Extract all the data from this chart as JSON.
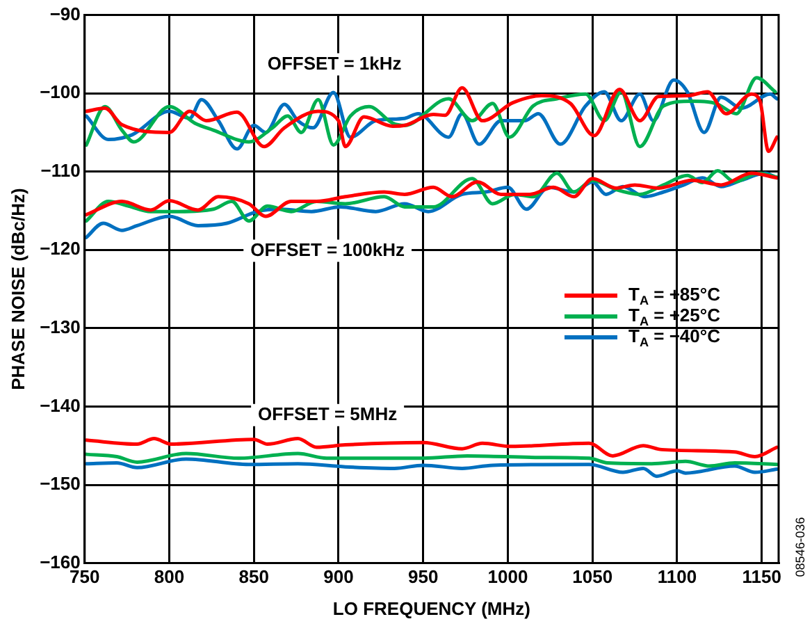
{
  "chart_data": {
    "type": "line",
    "xlabel": "LO FREQUENCY (MHz)",
    "ylabel": "PHASE NOISE (dBc/Hz)",
    "xlim": [
      750,
      1160
    ],
    "xticks": [
      750,
      800,
      850,
      900,
      950,
      1000,
      1050,
      1100,
      1150
    ],
    "ylim": [
      -160,
      -90
    ],
    "yticks": [
      {
        "value": -160,
        "label": "−160"
      },
      {
        "value": -150,
        "label": "−150"
      },
      {
        "value": -140,
        "label": "−140"
      },
      {
        "value": -130,
        "label": "−130"
      },
      {
        "value": -120,
        "label": "−120"
      },
      {
        "value": -110,
        "label": "−110"
      },
      {
        "value": -100,
        "label": "−100"
      },
      {
        "value": -90,
        "label": "−90"
      }
    ],
    "grid": true,
    "legend": "right",
    "marker": "none",
    "line_style": "solid",
    "annotations": [
      "OFFSET = 1kHz",
      "OFFSET = 100kHz",
      "OFFSET = 5MHz",
      "08546-036"
    ],
    "series": [
      {
        "name": "T$_{A}$ = +85°C",
        "color": "#ff0000",
        "x": [
          751,
          762,
          772,
          800,
          812,
          822,
          840,
          856,
          868,
          888,
          900,
          904,
          915,
          932,
          939,
          956,
          963,
          973,
          985,
          1003,
          1020,
          1037,
          1051,
          1066,
          1078,
          1089,
          1106,
          1118,
          1129,
          1144,
          1149,
          1154,
          1159
        ],
        "values": [
          -102.3,
          -101.9,
          -104,
          -105,
          -102.3,
          -103.5,
          -102.4,
          -106.8,
          -104.4,
          -102.3,
          -103.5,
          -106.8,
          -103,
          -104.2,
          -104.1,
          -102.7,
          -102.8,
          -99.3,
          -103.5,
          -101.2,
          -100.3,
          -101.3,
          -105.4,
          -99.5,
          -103.5,
          -100.4,
          -100.3,
          -99.8,
          -102.6,
          -100.1,
          -101,
          -107.4,
          -105.6
        ]
      },
      {
        "name": "T$_{A}$ = +25°C",
        "color": "#00b050",
        "x": [
          751,
          762,
          772,
          779,
          800,
          815,
          826,
          847,
          861,
          870,
          878,
          888,
          897,
          907,
          918,
          932,
          939,
          965,
          979,
          991,
          1001,
          1015,
          1029,
          1046,
          1057,
          1067,
          1078,
          1092,
          1109,
          1123,
          1135,
          1147,
          1158
        ],
        "values": [
          -106.6,
          -101.7,
          -104.7,
          -106.2,
          -101.7,
          -103.8,
          -104.7,
          -106.2,
          -104.4,
          -102.9,
          -105,
          -100.8,
          -106.6,
          -102.9,
          -101.7,
          -103.8,
          -104.1,
          -100.7,
          -103.5,
          -101.3,
          -105.6,
          -101.6,
          -100.7,
          -100.1,
          -103.5,
          -99.8,
          -106.8,
          -101.6,
          -101,
          -101.3,
          -102.6,
          -98,
          -99.8
        ]
      },
      {
        "name": "T$_{A}$ = −40°C",
        "color": "#0070c0",
        "x": [
          751,
          764,
          778,
          800,
          812,
          819,
          829,
          840,
          850,
          857,
          868,
          876,
          885,
          897,
          907,
          922,
          939,
          947,
          965,
          973,
          983,
          996,
          1010,
          1018,
          1031,
          1046,
          1057,
          1067,
          1078,
          1086,
          1098,
          1106,
          1116,
          1126,
          1138,
          1155,
          1159
        ],
        "values": [
          -102.9,
          -105.9,
          -105.3,
          -102.3,
          -103.2,
          -100.8,
          -103.5,
          -107.1,
          -104.1,
          -105,
          -101.4,
          -103.5,
          -104.4,
          -99.9,
          -105.6,
          -103.5,
          -103.2,
          -102.6,
          -105.6,
          -102.6,
          -106.5,
          -103.5,
          -103.5,
          -102.6,
          -106.5,
          -101.6,
          -99.8,
          -103.5,
          -100.1,
          -103.5,
          -98.3,
          -99.8,
          -105,
          -100.5,
          -101.9,
          -100.1,
          -100.7
        ]
      },
      {
        "color": "#ff0000",
        "x": [
          751,
          772,
          789,
          800,
          817,
          829,
          847,
          857,
          872,
          887,
          904,
          927,
          939,
          956,
          967,
          982,
          996,
          1013,
          1027,
          1039,
          1050,
          1064,
          1075,
          1089,
          1109,
          1126,
          1144,
          1159
        ],
        "values": [
          -115.5,
          -113.8,
          -114.9,
          -113.7,
          -114.9,
          -113.2,
          -114.1,
          -115.7,
          -113.8,
          -113.8,
          -113.2,
          -112.6,
          -112.9,
          -112,
          -113.2,
          -111.3,
          -112.9,
          -112.9,
          -112,
          -113.2,
          -110.9,
          -112.1,
          -111.7,
          -112.1,
          -111.1,
          -111.7,
          -110.2,
          -110.8
        ]
      },
      {
        "color": "#00b050",
        "x": [
          751,
          764,
          776,
          789,
          806,
          826,
          837,
          847,
          858,
          872,
          887,
          904,
          927,
          939,
          956,
          979,
          991,
          1004,
          1015,
          1029,
          1039,
          1050,
          1064,
          1078,
          1092,
          1106,
          1115,
          1124,
          1134,
          1148,
          1159
        ],
        "values": [
          -116.3,
          -113.8,
          -114.4,
          -115.1,
          -115.1,
          -114.8,
          -113.8,
          -116.3,
          -114.4,
          -115.1,
          -113.8,
          -114.1,
          -113.2,
          -114.5,
          -114.5,
          -110.9,
          -114.1,
          -112.9,
          -113.2,
          -110.2,
          -112.6,
          -111.1,
          -112.3,
          -112.9,
          -111.7,
          -110.5,
          -111.4,
          -109.9,
          -111.3,
          -110.2,
          -110.7
        ]
      },
      {
        "color": "#0070c0",
        "x": [
          751,
          761,
          772,
          781,
          800,
          817,
          834,
          852,
          866,
          884,
          901,
          922,
          939,
          953,
          973,
          987,
          1000,
          1011,
          1024,
          1039,
          1050,
          1058,
          1068,
          1081,
          1092,
          1104,
          1115,
          1126,
          1138,
          1152,
          1159
        ],
        "values": [
          -118.4,
          -116.6,
          -117.5,
          -116.9,
          -115.7,
          -116.9,
          -116.6,
          -115.1,
          -114.8,
          -115.1,
          -114.5,
          -115.1,
          -114.1,
          -115.1,
          -112.9,
          -112.6,
          -112,
          -114.8,
          -112,
          -112.6,
          -111.3,
          -112.9,
          -111.9,
          -113.2,
          -112.6,
          -111.7,
          -110.8,
          -111.9,
          -111.1,
          -110.2,
          -110.8
        ]
      },
      {
        "color": "#ff0000",
        "x": [
          751,
          781,
          791,
          801,
          850,
          858,
          876,
          887,
          904,
          950,
          973,
          985,
          1002,
          1048,
          1062,
          1080,
          1091,
          1134,
          1146,
          1159
        ],
        "values": [
          -144.3,
          -144.8,
          -144.1,
          -144.8,
          -144.2,
          -144.8,
          -144.1,
          -145.2,
          -144.9,
          -144.6,
          -145.4,
          -144.7,
          -145.1,
          -144.7,
          -146.3,
          -145,
          -145.5,
          -145.8,
          -146.4,
          -145.2
        ]
      },
      {
        "color": "#00b050",
        "x": [
          751,
          769,
          781,
          810,
          841,
          876,
          893,
          950,
          976,
          1019,
          1048,
          1059,
          1085,
          1105,
          1119,
          1134,
          1159
        ],
        "values": [
          -146.1,
          -146.4,
          -147.1,
          -146,
          -146.6,
          -146,
          -146.6,
          -146.6,
          -146.3,
          -146.5,
          -146.6,
          -147.2,
          -147.3,
          -147,
          -147.6,
          -147.2,
          -147.4
        ]
      },
      {
        "color": "#0070c0",
        "x": [
          751,
          769,
          781,
          810,
          847,
          876,
          904,
          933,
          950,
          973,
          991,
          1048,
          1068,
          1080,
          1088,
          1100,
          1105,
          1134,
          1146,
          1159
        ],
        "values": [
          -147.3,
          -147.2,
          -147.8,
          -146.7,
          -147.4,
          -147.3,
          -147.7,
          -147.9,
          -147.5,
          -147.9,
          -147.5,
          -147.4,
          -148.4,
          -147.9,
          -148.9,
          -148.2,
          -148.5,
          -147.6,
          -148.4,
          -148
        ]
      }
    ]
  }
}
